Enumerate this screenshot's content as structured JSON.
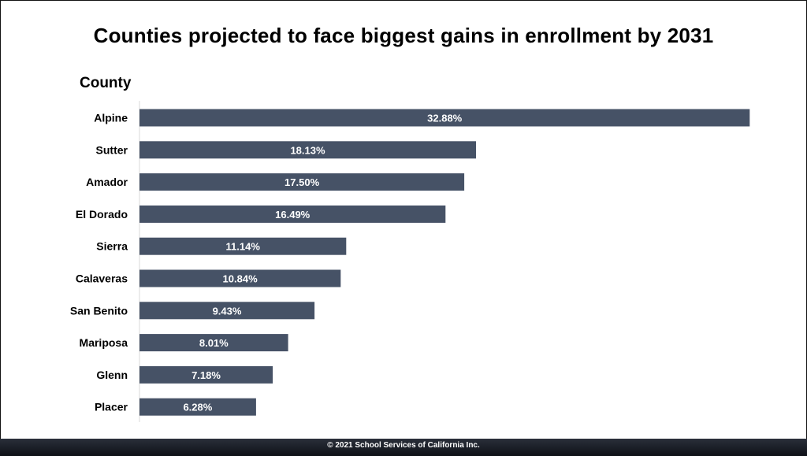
{
  "chart_data": {
    "type": "bar",
    "orientation": "horizontal",
    "title": "Counties projected to face biggest gains in enrollment by 2031",
    "ylabel": "County",
    "xlabel": "",
    "categories": [
      "Alpine",
      "Sutter",
      "Amador",
      "El Dorado",
      "Sierra",
      "Calaveras",
      "San Benito",
      "Mariposa",
      "Glenn",
      "Placer"
    ],
    "values": [
      32.88,
      18.13,
      17.5,
      16.49,
      11.14,
      10.84,
      9.43,
      8.01,
      7.18,
      6.28
    ],
    "value_labels": [
      "32.88%",
      "18.13%",
      "17.50%",
      "16.49%",
      "11.14%",
      "10.84%",
      "9.43%",
      "8.01%",
      "7.18%",
      "6.28%"
    ],
    "xlim": [
      0,
      33
    ],
    "grid": false,
    "bar_color": "#465266",
    "label_color": "#ffffff"
  },
  "footer": {
    "text": "© 2021 School Services of California Inc."
  }
}
